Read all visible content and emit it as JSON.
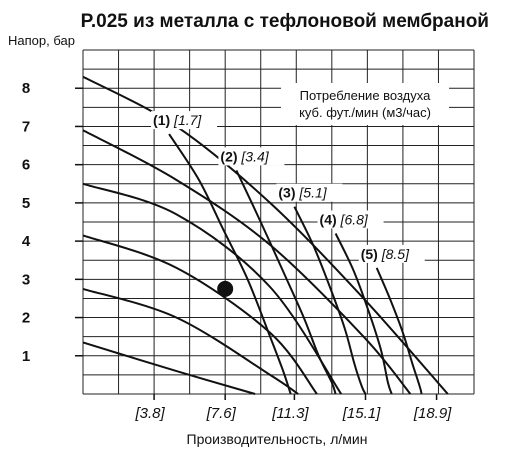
{
  "chart_data": {
    "type": "line",
    "title": "P.025 из металла с тефлоновой мембраной",
    "ylabel": "Напор, бар",
    "xlabel": "Производительность, л/мин",
    "annotation": [
      "Потребление воздуха",
      "куб. фут./мин (м3/час)"
    ],
    "ylim": [
      0,
      9
    ],
    "xlim": [
      0,
      20.9
    ],
    "grid": true,
    "yticks": [
      1,
      2,
      3,
      4,
      5,
      6,
      7,
      8
    ],
    "ytick_labels": [
      "1",
      "2",
      "3",
      "4",
      "5",
      "6",
      "7",
      "8"
    ],
    "xticks": [
      3.8,
      7.6,
      11.3,
      15.1,
      18.9
    ],
    "xtick_labels": [
      "[3.8]",
      "[7.6]",
      "[11.3]",
      "[15.1]",
      "[18.9]"
    ],
    "pump_curves": [
      {
        "x": [
          0,
          5,
          10,
          15,
          19.5
        ],
        "y": [
          8.3,
          7.0,
          5.0,
          2.5,
          0
        ]
      },
      {
        "x": [
          0,
          5,
          10,
          15,
          17.5
        ],
        "y": [
          6.9,
          5.6,
          3.9,
          1.5,
          0
        ]
      },
      {
        "x": [
          0,
          5,
          10,
          13.8
        ],
        "y": [
          5.5,
          4.7,
          2.8,
          0
        ]
      },
      {
        "x": [
          0,
          5,
          10,
          12.5
        ],
        "y": [
          4.15,
          3.3,
          1.6,
          0
        ]
      },
      {
        "x": [
          0,
          5,
          10,
          11.5
        ],
        "y": [
          2.75,
          2.0,
          0.5,
          0
        ]
      },
      {
        "x": [
          0,
          5,
          9.2
        ],
        "y": [
          1.35,
          0.6,
          0
        ]
      }
    ],
    "series": [
      {
        "name": "(1)",
        "value": "[1.7]",
        "x": [
          4.6,
          6.2,
          7.5,
          8.8,
          10.0,
          10.7,
          11.1
        ],
        "y": [
          6.8,
          5.6,
          4.3,
          3.0,
          1.5,
          0.6,
          0
        ]
      },
      {
        "name": "(2)",
        "value": "[3.4]",
        "x": [
          8.2,
          9.5,
          10.8,
          11.8,
          12.6,
          13.3,
          13.5
        ],
        "y": [
          5.85,
          4.5,
          3.1,
          2.0,
          1.0,
          0.3,
          0
        ]
      },
      {
        "name": "(3)",
        "value": "[5.1]",
        "x": [
          11.3,
          12.3,
          13.2,
          14.0,
          14.5,
          14.9,
          15.1
        ],
        "y": [
          4.9,
          3.9,
          2.8,
          1.7,
          0.8,
          0.2,
          0
        ]
      },
      {
        "name": "(4)",
        "value": "[6.8]",
        "x": [
          13.5,
          14.4,
          15.1,
          15.9,
          16.3,
          16.5
        ],
        "y": [
          4.2,
          3.3,
          2.4,
          1.2,
          0.3,
          0
        ]
      },
      {
        "name": "(5)",
        "value": "[8.5]",
        "x": [
          15.7,
          16.4,
          17.1,
          17.6,
          18.0,
          18.1
        ],
        "y": [
          3.3,
          2.5,
          1.6,
          0.8,
          0.2,
          0
        ]
      }
    ],
    "marker": {
      "x": 7.6,
      "y": 2.75
    }
  }
}
